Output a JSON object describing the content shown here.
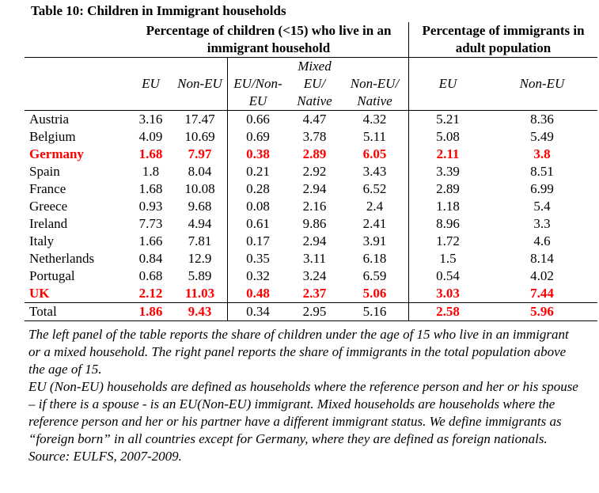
{
  "title": "Table 10: Children in Immigrant households",
  "headers": {
    "left_panel": "Percentage of children (<15) who live in an immigrant household",
    "right_panel": "Percentage of immigrants in adult population",
    "columns": [
      {
        "top": "",
        "mid": "EU",
        "bot": ""
      },
      {
        "top": "",
        "mid": "Non-EU",
        "bot": ""
      },
      {
        "top": "",
        "mid": "EU/Non-",
        "bot": "EU"
      },
      {
        "top": "Mixed",
        "mid": "EU/",
        "bot": "Native"
      },
      {
        "top": "",
        "mid": "Non-EU/",
        "bot": "Native"
      },
      {
        "top": "",
        "mid": "EU",
        "bot": ""
      },
      {
        "top": "",
        "mid": "Non-EU",
        "bot": ""
      }
    ]
  },
  "rows": [
    {
      "country": "Austria",
      "values": [
        "3.16",
        "17.47",
        "0.66",
        "4.47",
        "4.32",
        "5.21",
        "8.36"
      ]
    },
    {
      "country": "Belgium",
      "values": [
        "4.09",
        "10.69",
        "0.69",
        "3.78",
        "5.11",
        "5.08",
        "5.49"
      ]
    },
    {
      "country": "Germany",
      "values": [
        "1.68",
        "7.97",
        "0.38",
        "2.89",
        "6.05",
        "2.11",
        "3.8"
      ]
    },
    {
      "country": "Spain",
      "values": [
        "1.8",
        "8.04",
        "0.21",
        "2.92",
        "3.43",
        "3.39",
        "8.51"
      ]
    },
    {
      "country": "France",
      "values": [
        "1.68",
        "10.08",
        "0.28",
        "2.94",
        "6.52",
        "2.89",
        "6.99"
      ]
    },
    {
      "country": "Greece",
      "values": [
        "0.93",
        "9.68",
        "0.08",
        "2.16",
        "2.4",
        "1.18",
        "5.4"
      ]
    },
    {
      "country": "Ireland",
      "values": [
        "7.73",
        "4.94",
        "0.61",
        "9.86",
        "2.41",
        "8.96",
        "3.3"
      ]
    },
    {
      "country": "Italy",
      "values": [
        "1.66",
        "7.81",
        "0.17",
        "2.94",
        "3.91",
        "1.72",
        "4.6"
      ]
    },
    {
      "country": "Netherlands",
      "values": [
        "0.84",
        "12.9",
        "0.35",
        "3.11",
        "6.18",
        "1.5",
        "8.14"
      ]
    },
    {
      "country": "Portugal",
      "values": [
        "0.68",
        "5.89",
        "0.32",
        "3.24",
        "6.59",
        "0.54",
        "4.02"
      ]
    },
    {
      "country": "UK",
      "values": [
        "2.12",
        "11.03",
        "0.48",
        "2.37",
        "5.06",
        "3.03",
        "7.44"
      ]
    }
  ],
  "total_row": {
    "country": "Total",
    "values": [
      "1.86",
      "9.43",
      "0.34",
      "2.95",
      "5.16",
      "2.58",
      "5.96"
    ]
  },
  "highlight_color": "#ff0000",
  "notes": [
    "The left panel of the table reports the share of children under the age of 15 who live in an immigrant or a mixed household. The right panel reports the share of immigrants in the total population above the age of 15.",
    "EU (Non-EU) households are defined as households where the reference person and her or his spouse – if there is a spouse - is an EU(Non-EU) immigrant. Mixed households are households where the reference person and her or his partner have a different immigrant status. We define immigrants as “foreign born” in all countries except for Germany, where they are defined as foreign nationals.",
    "Source: EULFS, 2007-2009."
  ]
}
